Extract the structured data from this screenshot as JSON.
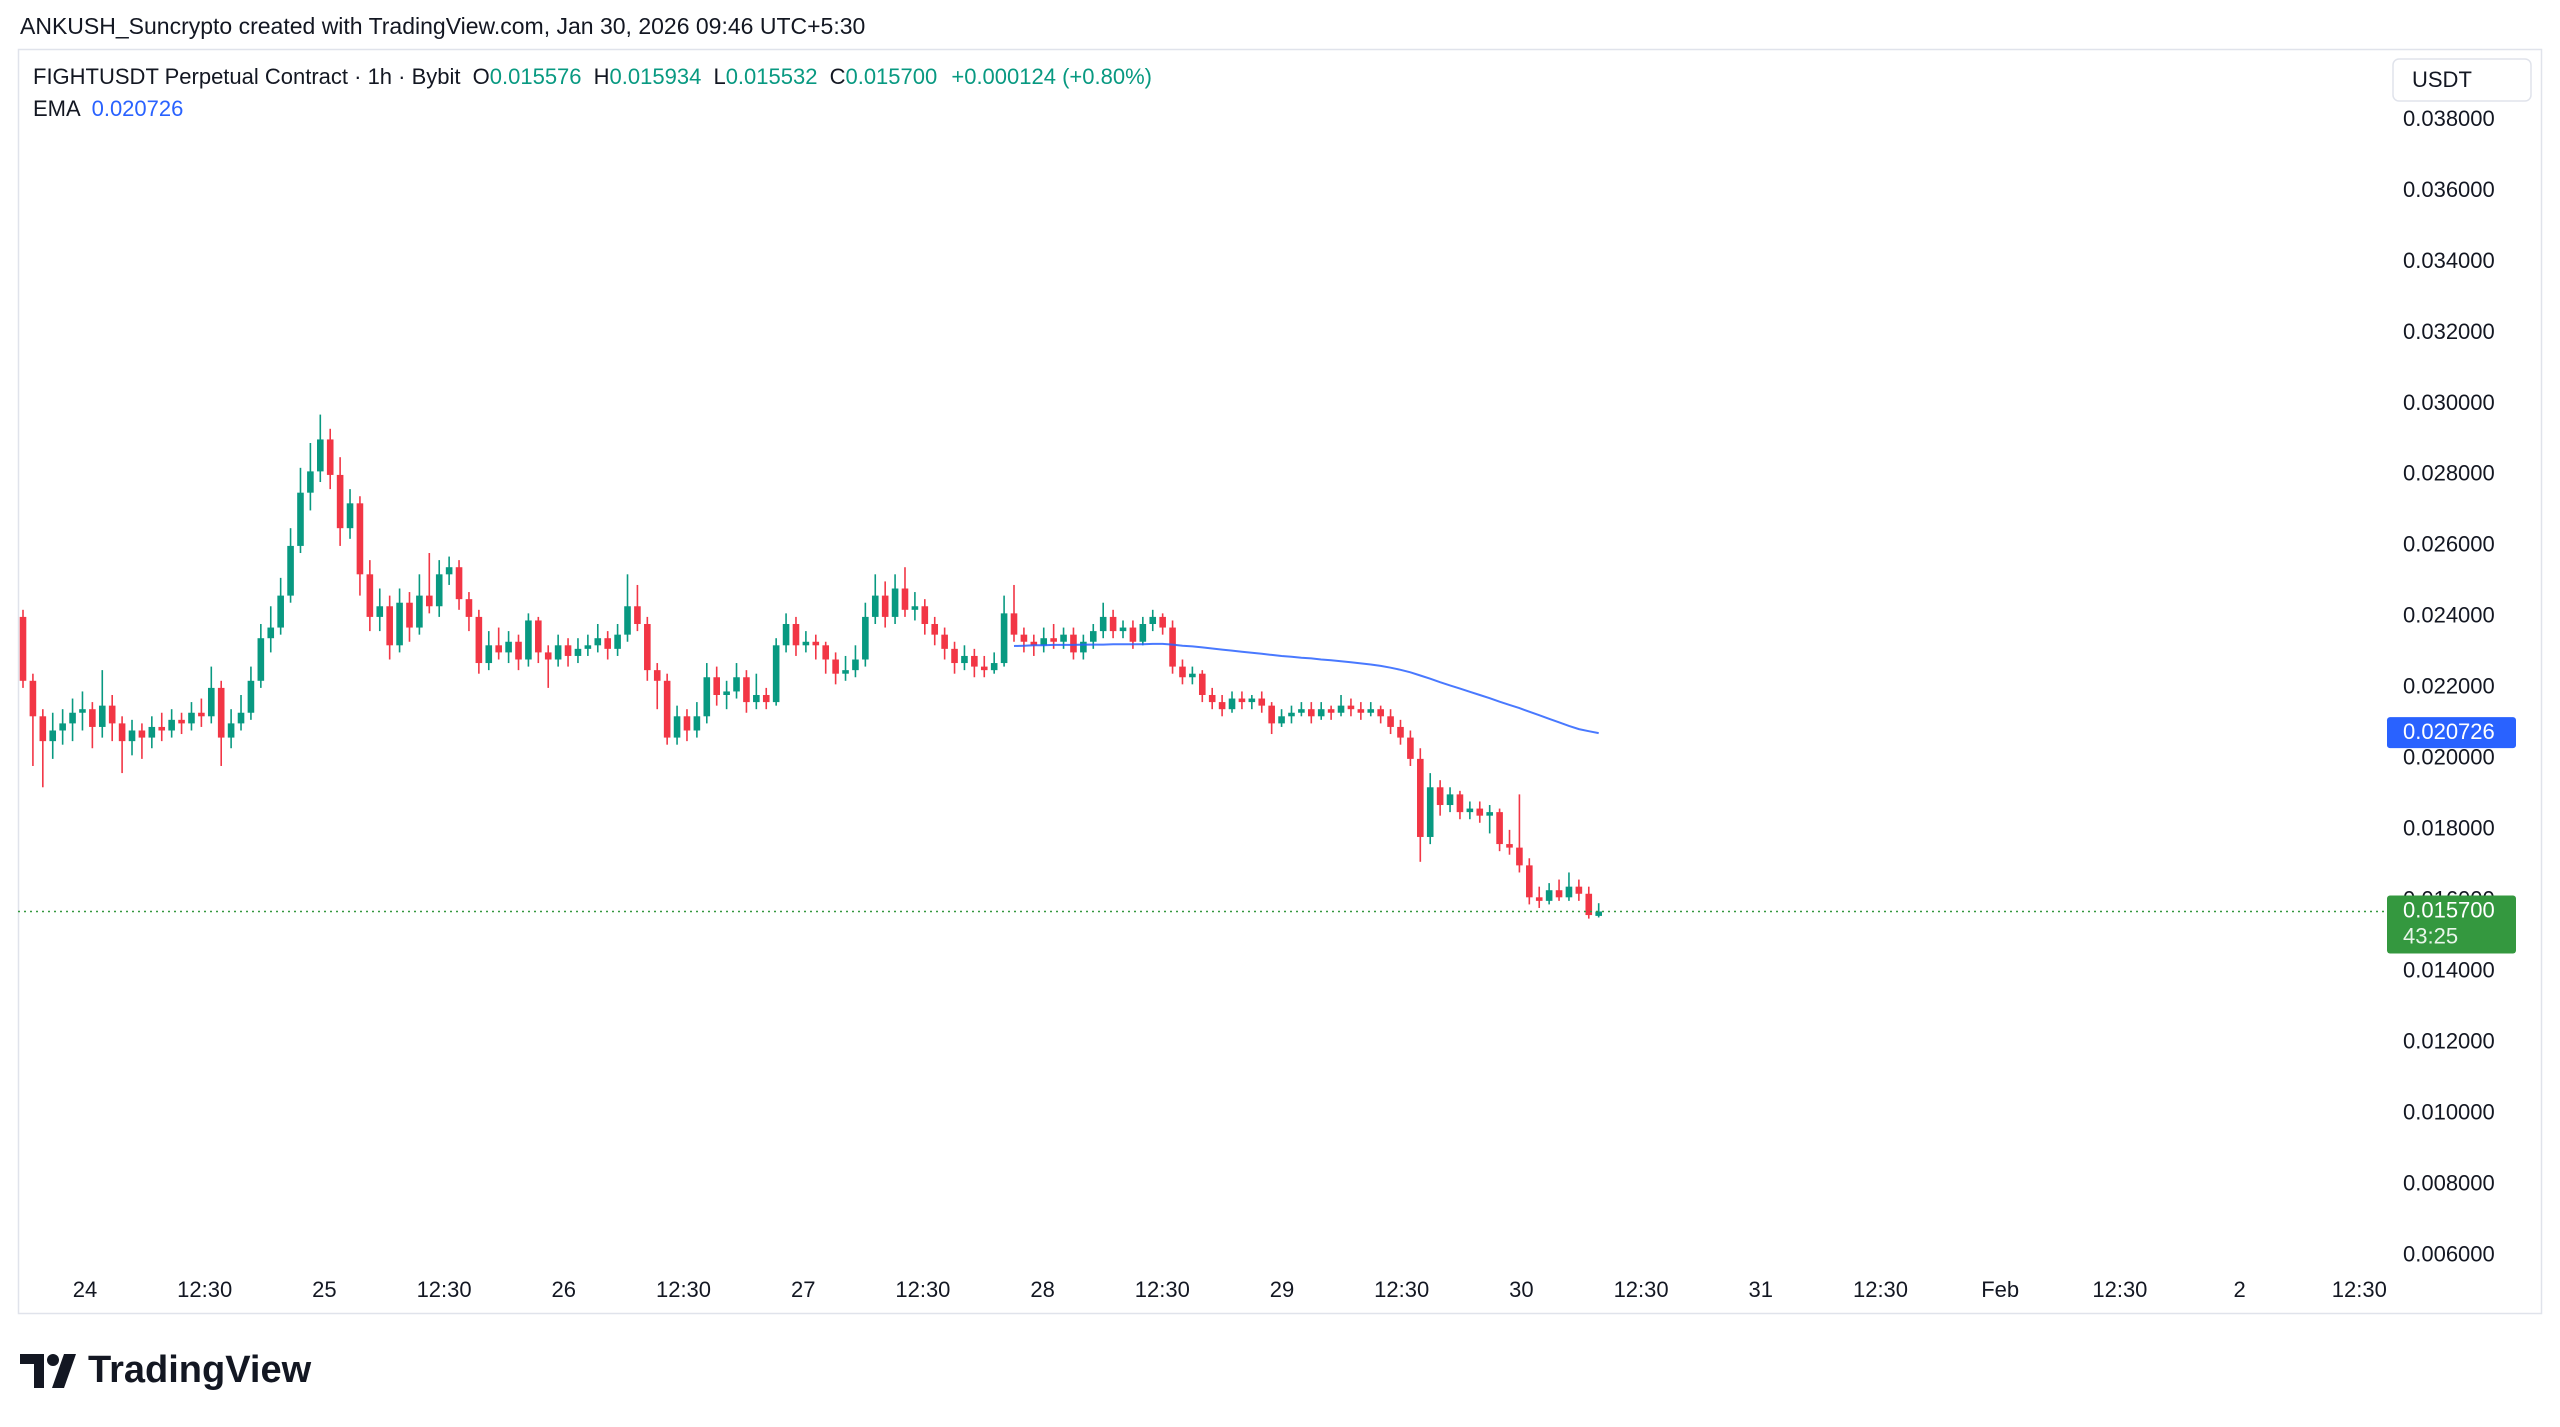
{
  "header": {
    "attribution": "ANKUSH_Suncrypto created with TradingView.com, Jan 30, 2026 09:46 UTC+5:30"
  },
  "chart_data": {
    "type": "candlestick",
    "title": "FIGHTUSDT Perpetual Contract · 1h · Bybit",
    "ohlc_legend": {
      "o_label": "O",
      "open": "0.015576",
      "h_label": "H",
      "high": "0.015934",
      "l_label": "L",
      "low": "0.015532",
      "c_label": "C",
      "close": "0.015700",
      "change": "+0.000124 (+0.80%)"
    },
    "up_color": "#089981",
    "down_color": "#f23645",
    "candles": [
      [
        0.024,
        0.0242,
        0.022,
        0.0222
      ],
      [
        0.0222,
        0.0224,
        0.0198,
        0.0212
      ],
      [
        0.0212,
        0.0214,
        0.0192,
        0.0205
      ],
      [
        0.0205,
        0.0213,
        0.02,
        0.0208
      ],
      [
        0.0208,
        0.0214,
        0.0204,
        0.021
      ],
      [
        0.021,
        0.0217,
        0.0205,
        0.0213
      ],
      [
        0.0213,
        0.0219,
        0.0208,
        0.0214
      ],
      [
        0.0214,
        0.0216,
        0.0203,
        0.0209
      ],
      [
        0.0209,
        0.0225,
        0.0206,
        0.0215
      ],
      [
        0.0215,
        0.0218,
        0.0205,
        0.021
      ],
      [
        0.021,
        0.0212,
        0.0196,
        0.0205
      ],
      [
        0.0205,
        0.0211,
        0.0201,
        0.0208
      ],
      [
        0.0208,
        0.021,
        0.02,
        0.0206
      ],
      [
        0.0206,
        0.0212,
        0.0203,
        0.0209
      ],
      [
        0.0209,
        0.0213,
        0.0205,
        0.0208
      ],
      [
        0.0208,
        0.0214,
        0.0206,
        0.0211
      ],
      [
        0.0211,
        0.0213,
        0.0207,
        0.021
      ],
      [
        0.021,
        0.0216,
        0.0208,
        0.0213
      ],
      [
        0.0213,
        0.0217,
        0.0209,
        0.0212
      ],
      [
        0.0212,
        0.0226,
        0.021,
        0.022
      ],
      [
        0.022,
        0.0222,
        0.0198,
        0.0206
      ],
      [
        0.0206,
        0.0214,
        0.0203,
        0.021
      ],
      [
        0.021,
        0.0218,
        0.0208,
        0.0213
      ],
      [
        0.0213,
        0.0226,
        0.0211,
        0.0222
      ],
      [
        0.0222,
        0.0238,
        0.022,
        0.0234
      ],
      [
        0.0234,
        0.0243,
        0.023,
        0.0237
      ],
      [
        0.0237,
        0.0251,
        0.0235,
        0.0246
      ],
      [
        0.0246,
        0.0265,
        0.0244,
        0.026
      ],
      [
        0.026,
        0.0282,
        0.0258,
        0.0275
      ],
      [
        0.0275,
        0.0289,
        0.027,
        0.0281
      ],
      [
        0.0281,
        0.0297,
        0.0278,
        0.029
      ],
      [
        0.029,
        0.0293,
        0.0276,
        0.028
      ],
      [
        0.028,
        0.0285,
        0.026,
        0.0265
      ],
      [
        0.0265,
        0.0276,
        0.0262,
        0.0272
      ],
      [
        0.0272,
        0.0274,
        0.0246,
        0.0252
      ],
      [
        0.0252,
        0.0256,
        0.0236,
        0.024
      ],
      [
        0.024,
        0.0248,
        0.0236,
        0.0243
      ],
      [
        0.0243,
        0.0246,
        0.0228,
        0.0232
      ],
      [
        0.0232,
        0.0248,
        0.023,
        0.0244
      ],
      [
        0.0244,
        0.0247,
        0.0233,
        0.0237
      ],
      [
        0.0237,
        0.0252,
        0.0235,
        0.0246
      ],
      [
        0.0246,
        0.0258,
        0.0241,
        0.0243
      ],
      [
        0.0243,
        0.0256,
        0.024,
        0.0252
      ],
      [
        0.0252,
        0.0257,
        0.0249,
        0.0254
      ],
      [
        0.0254,
        0.0256,
        0.0242,
        0.0245
      ],
      [
        0.0245,
        0.0247,
        0.0236,
        0.024
      ],
      [
        0.024,
        0.0242,
        0.0224,
        0.0227
      ],
      [
        0.0227,
        0.0236,
        0.0225,
        0.0232
      ],
      [
        0.0232,
        0.0237,
        0.0228,
        0.023
      ],
      [
        0.023,
        0.0236,
        0.0227,
        0.0233
      ],
      [
        0.0233,
        0.0235,
        0.0225,
        0.0228
      ],
      [
        0.0228,
        0.0241,
        0.0226,
        0.0239
      ],
      [
        0.0239,
        0.024,
        0.0227,
        0.023
      ],
      [
        0.023,
        0.0232,
        0.022,
        0.0228
      ],
      [
        0.0228,
        0.0235,
        0.0226,
        0.0232
      ],
      [
        0.0232,
        0.0234,
        0.0226,
        0.0229
      ],
      [
        0.0229,
        0.0234,
        0.0227,
        0.0231
      ],
      [
        0.0231,
        0.0235,
        0.0229,
        0.0232
      ],
      [
        0.0232,
        0.0238,
        0.023,
        0.0234
      ],
      [
        0.0234,
        0.0236,
        0.0228,
        0.0231
      ],
      [
        0.0231,
        0.0238,
        0.0229,
        0.0235
      ],
      [
        0.0235,
        0.0252,
        0.0233,
        0.0243
      ],
      [
        0.0243,
        0.0249,
        0.0236,
        0.0238
      ],
      [
        0.0238,
        0.024,
        0.0222,
        0.0225
      ],
      [
        0.0225,
        0.0227,
        0.0214,
        0.0222
      ],
      [
        0.0222,
        0.0224,
        0.0204,
        0.0206
      ],
      [
        0.0206,
        0.0215,
        0.0204,
        0.0212
      ],
      [
        0.0212,
        0.0214,
        0.0205,
        0.0208
      ],
      [
        0.0208,
        0.0216,
        0.0206,
        0.0212
      ],
      [
        0.0212,
        0.0227,
        0.021,
        0.0223
      ],
      [
        0.0223,
        0.0226,
        0.0215,
        0.0218
      ],
      [
        0.0218,
        0.0222,
        0.0214,
        0.0219
      ],
      [
        0.0219,
        0.0227,
        0.0217,
        0.0223
      ],
      [
        0.0223,
        0.0225,
        0.0213,
        0.0216
      ],
      [
        0.0216,
        0.0224,
        0.0214,
        0.0218
      ],
      [
        0.0218,
        0.022,
        0.0214,
        0.0216
      ],
      [
        0.0216,
        0.0234,
        0.0215,
        0.0232
      ],
      [
        0.0232,
        0.0241,
        0.023,
        0.0238
      ],
      [
        0.0238,
        0.024,
        0.0229,
        0.0232
      ],
      [
        0.0232,
        0.0236,
        0.023,
        0.0233
      ],
      [
        0.0233,
        0.0235,
        0.0228,
        0.0232
      ],
      [
        0.0232,
        0.0233,
        0.0224,
        0.0228
      ],
      [
        0.0228,
        0.023,
        0.0221,
        0.0224
      ],
      [
        0.0224,
        0.0229,
        0.0222,
        0.0225
      ],
      [
        0.0225,
        0.0232,
        0.0223,
        0.0228
      ],
      [
        0.0228,
        0.0244,
        0.0226,
        0.024
      ],
      [
        0.024,
        0.0252,
        0.0238,
        0.0246
      ],
      [
        0.0246,
        0.025,
        0.0237,
        0.024
      ],
      [
        0.024,
        0.0252,
        0.0238,
        0.0248
      ],
      [
        0.0248,
        0.0254,
        0.024,
        0.0242
      ],
      [
        0.0242,
        0.0247,
        0.0239,
        0.0243
      ],
      [
        0.0243,
        0.0245,
        0.0235,
        0.0238
      ],
      [
        0.0238,
        0.024,
        0.0232,
        0.0235
      ],
      [
        0.0235,
        0.0237,
        0.0228,
        0.0231
      ],
      [
        0.0231,
        0.0233,
        0.0224,
        0.0227
      ],
      [
        0.0227,
        0.0232,
        0.0225,
        0.0229
      ],
      [
        0.0229,
        0.0231,
        0.0223,
        0.0226
      ],
      [
        0.0226,
        0.0229,
        0.0223,
        0.0225
      ],
      [
        0.0225,
        0.023,
        0.0224,
        0.0227
      ],
      [
        0.0227,
        0.0246,
        0.0226,
        0.0241
      ],
      [
        0.0241,
        0.0249,
        0.0233,
        0.0235
      ],
      [
        0.0235,
        0.0237,
        0.023,
        0.0233
      ],
      [
        0.0233,
        0.0235,
        0.0229,
        0.0232
      ],
      [
        0.0232,
        0.0237,
        0.023,
        0.0234
      ],
      [
        0.0234,
        0.0238,
        0.0231,
        0.0233
      ],
      [
        0.0233,
        0.0237,
        0.0231,
        0.0235
      ],
      [
        0.0235,
        0.0237,
        0.0228,
        0.023
      ],
      [
        0.023,
        0.0235,
        0.0228,
        0.0233
      ],
      [
        0.0233,
        0.0238,
        0.0231,
        0.0236
      ],
      [
        0.0236,
        0.0244,
        0.0234,
        0.024
      ],
      [
        0.024,
        0.0242,
        0.0234,
        0.0236
      ],
      [
        0.0236,
        0.0239,
        0.0234,
        0.0237
      ],
      [
        0.0237,
        0.0239,
        0.0231,
        0.0233
      ],
      [
        0.0233,
        0.024,
        0.0232,
        0.0238
      ],
      [
        0.0238,
        0.0242,
        0.0236,
        0.024
      ],
      [
        0.024,
        0.0241,
        0.0235,
        0.0237
      ],
      [
        0.0237,
        0.0239,
        0.0224,
        0.0226
      ],
      [
        0.0226,
        0.0228,
        0.0221,
        0.0223
      ],
      [
        0.0223,
        0.0226,
        0.0221,
        0.0224
      ],
      [
        0.0224,
        0.0225,
        0.0216,
        0.0218
      ],
      [
        0.0218,
        0.022,
        0.0214,
        0.0216
      ],
      [
        0.0216,
        0.0218,
        0.0212,
        0.0214
      ],
      [
        0.0214,
        0.0219,
        0.0213,
        0.0217
      ],
      [
        0.0217,
        0.0219,
        0.0214,
        0.0216
      ],
      [
        0.0216,
        0.0218,
        0.0214,
        0.0217
      ],
      [
        0.0217,
        0.0219,
        0.0213,
        0.0215
      ],
      [
        0.0215,
        0.0216,
        0.0207,
        0.021
      ],
      [
        0.021,
        0.0214,
        0.0209,
        0.0212
      ],
      [
        0.0212,
        0.0215,
        0.021,
        0.0213
      ],
      [
        0.0213,
        0.0216,
        0.0212,
        0.0214
      ],
      [
        0.0214,
        0.0216,
        0.021,
        0.0212
      ],
      [
        0.0212,
        0.0216,
        0.0211,
        0.0214
      ],
      [
        0.0214,
        0.0215,
        0.0211,
        0.0213
      ],
      [
        0.0213,
        0.0218,
        0.0212,
        0.0215
      ],
      [
        0.0215,
        0.0217,
        0.0212,
        0.0214
      ],
      [
        0.0214,
        0.0216,
        0.0211,
        0.0213
      ],
      [
        0.0213,
        0.0216,
        0.0212,
        0.0214
      ],
      [
        0.0214,
        0.0215,
        0.021,
        0.0212
      ],
      [
        0.0212,
        0.0214,
        0.0207,
        0.0209
      ],
      [
        0.0209,
        0.0211,
        0.0204,
        0.0206
      ],
      [
        0.0206,
        0.0208,
        0.0198,
        0.02
      ],
      [
        0.02,
        0.0203,
        0.0171,
        0.0178
      ],
      [
        0.0178,
        0.0196,
        0.0176,
        0.0192
      ],
      [
        0.0192,
        0.0194,
        0.0184,
        0.0187
      ],
      [
        0.0187,
        0.0192,
        0.0185,
        0.019
      ],
      [
        0.019,
        0.0191,
        0.0183,
        0.0185
      ],
      [
        0.0185,
        0.0188,
        0.0183,
        0.0186
      ],
      [
        0.0186,
        0.0188,
        0.0182,
        0.0184
      ],
      [
        0.0184,
        0.0187,
        0.0179,
        0.0185
      ],
      [
        0.0185,
        0.0186,
        0.0174,
        0.0176
      ],
      [
        0.0176,
        0.018,
        0.0173,
        0.0175
      ],
      [
        0.0175,
        0.019,
        0.0168,
        0.017
      ],
      [
        0.017,
        0.0172,
        0.0159,
        0.0161
      ],
      [
        0.0161,
        0.0164,
        0.0158,
        0.016
      ],
      [
        0.016,
        0.0165,
        0.0159,
        0.0163
      ],
      [
        0.0163,
        0.0166,
        0.016,
        0.0161
      ],
      [
        0.0161,
        0.0168,
        0.016,
        0.0164
      ],
      [
        0.0164,
        0.0166,
        0.016,
        0.0162
      ],
      [
        0.0162,
        0.0164,
        0.0155,
        0.0156
      ],
      [
        0.015576,
        0.015934,
        0.015532,
        0.0157
      ]
    ],
    "indicator": {
      "name": "EMA",
      "value_label": "0.020726",
      "color": "#2962ff",
      "values": [
        null,
        null,
        null,
        null,
        null,
        null,
        null,
        null,
        null,
        null,
        null,
        null,
        null,
        null,
        null,
        null,
        null,
        null,
        null,
        null,
        null,
        null,
        null,
        null,
        null,
        null,
        null,
        null,
        null,
        null,
        null,
        null,
        null,
        null,
        null,
        null,
        null,
        null,
        null,
        null,
        null,
        null,
        null,
        null,
        null,
        null,
        null,
        null,
        null,
        null,
        null,
        null,
        null,
        null,
        null,
        null,
        null,
        null,
        null,
        null,
        null,
        null,
        null,
        null,
        null,
        null,
        null,
        null,
        null,
        null,
        null,
        null,
        null,
        null,
        null,
        null,
        null,
        null,
        null,
        null,
        null,
        null,
        null,
        null,
        null,
        null,
        null,
        null,
        null,
        null,
        null,
        null,
        null,
        null,
        null,
        null,
        null,
        null,
        null,
        null,
        0.02318,
        0.02319,
        0.0232,
        0.0232,
        0.02321,
        0.02321,
        0.02321,
        0.02322,
        0.02322,
        0.02322,
        0.02323,
        0.02323,
        0.02323,
        0.02323,
        0.02324,
        0.02324,
        0.02322,
        0.02319,
        0.02317,
        0.02314,
        0.02311,
        0.02308,
        0.02305,
        0.02302,
        0.02299,
        0.02296,
        0.02293,
        0.0229,
        0.02288,
        0.02285,
        0.02283,
        0.0228,
        0.02278,
        0.02275,
        0.02272,
        0.02269,
        0.02266,
        0.02262,
        0.02257,
        0.02251,
        0.02244,
        0.02235,
        0.02226,
        0.02216,
        0.02207,
        0.02198,
        0.02189,
        0.0218,
        0.02171,
        0.02161,
        0.02152,
        0.02143,
        0.02133,
        0.02123,
        0.02113,
        0.02103,
        0.02093,
        0.02084,
        0.02078,
        0.020726
      ]
    },
    "x_labels": [
      "24",
      "12:30",
      "25",
      "12:30",
      "26",
      "12:30",
      "27",
      "12:30",
      "28",
      "12:30",
      "29",
      "12:30",
      "30",
      "12:30",
      "31",
      "12:30",
      "Feb",
      "12:30",
      "2",
      "12:30"
    ],
    "currency": "USDT",
    "ylim": [
      0.0056,
      0.04
    ],
    "yticks": [
      {
        "value": 0.038,
        "label": "0.038000"
      },
      {
        "value": 0.036,
        "label": "0.036000"
      },
      {
        "value": 0.034,
        "label": "0.034000"
      },
      {
        "value": 0.032,
        "label": "0.032000"
      },
      {
        "value": 0.03,
        "label": "0.030000"
      },
      {
        "value": 0.028,
        "label": "0.028000"
      },
      {
        "value": 0.026,
        "label": "0.026000"
      },
      {
        "value": 0.024,
        "label": "0.024000"
      },
      {
        "value": 0.022,
        "label": "0.022000"
      },
      {
        "value": 0.02,
        "label": "0.020000"
      },
      {
        "value": 0.018,
        "label": "0.018000"
      },
      {
        "value": 0.016,
        "label": "0.016000"
      },
      {
        "value": 0.014,
        "label": "0.014000"
      },
      {
        "value": 0.012,
        "label": "0.012000"
      },
      {
        "value": 0.01,
        "label": "0.010000"
      },
      {
        "value": 0.008,
        "label": "0.008000"
      },
      {
        "value": 0.006,
        "label": "0.006000"
      }
    ],
    "grid": false,
    "last_price": {
      "value": 0.0157,
      "label": "0.015700",
      "countdown": "43:25",
      "color": "#34983f"
    }
  },
  "footer": {
    "brand": "TradingView"
  }
}
